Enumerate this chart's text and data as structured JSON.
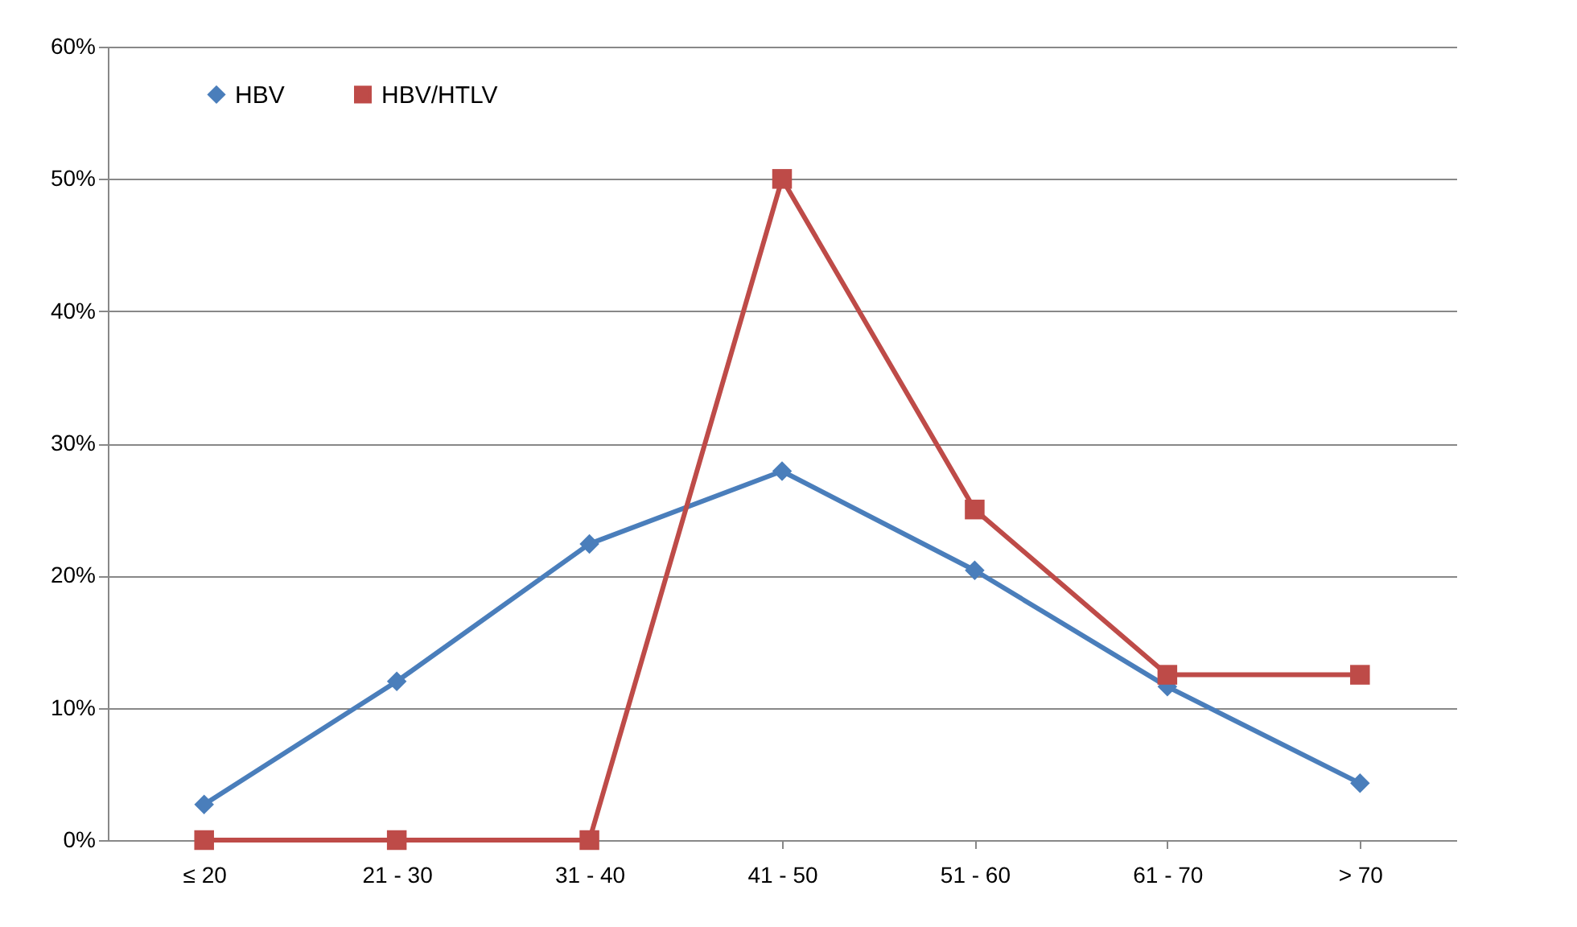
{
  "chart_data": {
    "type": "line",
    "categories": [
      "≤ 20",
      "21 - 30",
      "31 - 40",
      "41 - 50",
      "51 - 60",
      "61 - 70",
      "> 70"
    ],
    "series": [
      {
        "name": "HBV",
        "color": "#4a7ebb",
        "marker": "diamond",
        "values": [
          2.7,
          12.0,
          22.4,
          27.9,
          20.4,
          11.6,
          4.3
        ]
      },
      {
        "name": "HBV/HTLV",
        "color": "#be4b48",
        "marker": "square",
        "values": [
          0,
          0,
          0,
          50,
          25,
          12.5,
          12.5
        ]
      }
    ],
    "ylim": [
      0,
      60
    ],
    "yticks": [
      {
        "value": 0,
        "label": "0%"
      },
      {
        "value": 10,
        "label": "10%"
      },
      {
        "value": 20,
        "label": "20%"
      },
      {
        "value": 30,
        "label": "30%"
      },
      {
        "value": 40,
        "label": "40%"
      },
      {
        "value": 50,
        "label": "50%"
      },
      {
        "value": 60,
        "label": "60%"
      }
    ],
    "grid": "y",
    "legend": "top left",
    "line_style": "solid"
  }
}
